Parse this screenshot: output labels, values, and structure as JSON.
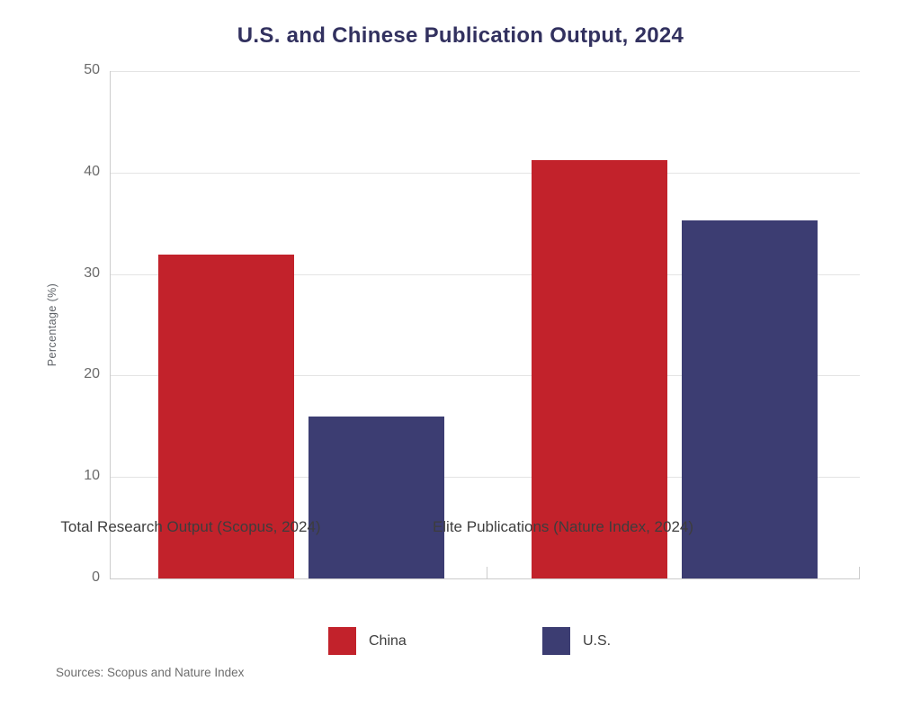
{
  "page": {
    "title": "U.S. and Chinese Publication Output, 2024",
    "source_note": "Sources: Scopus and Nature Index"
  },
  "chart_data": {
    "type": "bar",
    "title": "U.S. and Chinese Publication Output, 2024",
    "xlabel": "",
    "ylabel": "Percentage (%)",
    "ylim": [
      0,
      50
    ],
    "yticks": [
      0,
      10,
      20,
      30,
      40,
      50
    ],
    "grid": true,
    "legend_position": "bottom",
    "categories": [
      "Total Research Output (Scopus, 2024)",
      "Elite Publications (Nature Index, 2024)"
    ],
    "series": [
      {
        "name": "China",
        "color": "#C2222B",
        "values": [
          31.9,
          41.2
        ]
      },
      {
        "name": "U.S.",
        "color": "#3C3D72",
        "values": [
          16.0,
          35.3
        ]
      }
    ],
    "source_note": "Sources: Scopus and Nature Index"
  },
  "colors": {
    "title": "#32315F",
    "grid": "#E4E4E4",
    "axis_line": "#CCCCCC",
    "tick_text": "#6A6A6A",
    "category_text": "#3D3D3D",
    "background": "#FFFFFF",
    "china_red": "#C2222B",
    "us_navy": "#3C3D72"
  }
}
